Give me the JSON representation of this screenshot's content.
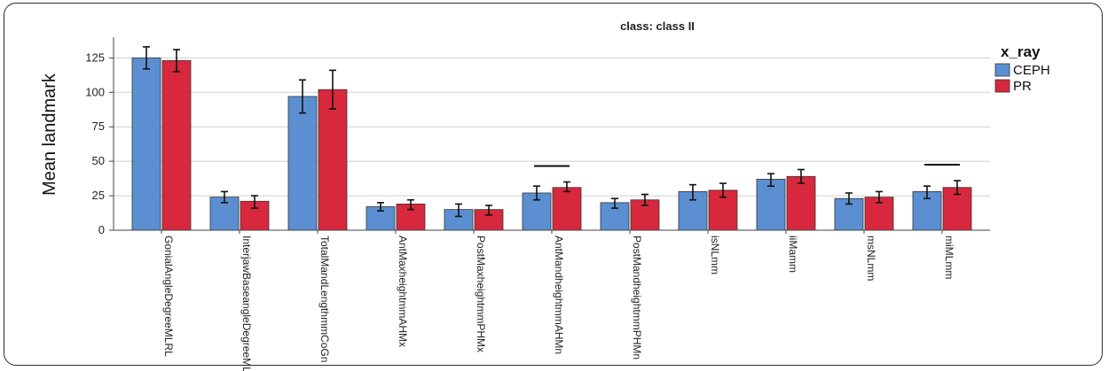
{
  "chart_data": {
    "type": "bar",
    "title": "class: class II",
    "ylabel": "Mean landmark",
    "xlabel": "",
    "ylim": [
      0,
      140
    ],
    "yticks": [
      0,
      25,
      50,
      75,
      100,
      125
    ],
    "grid": true,
    "legend": {
      "title": "x_ray",
      "position": "top-right"
    },
    "categories": [
      "GonialAngleDegreeMLRL",
      "InterjawBaseangleDegreeMLNL",
      "TotalMandLengthmmCoGn",
      "AntMaxheightmmAHMx",
      "PostMaxheightmmPHMx",
      "AntMandheightmmAHMn",
      "PostMandheightmmPHMn",
      "isNLmm",
      "iiMamm",
      "msNLmm",
      "miMLmm"
    ],
    "series": [
      {
        "name": "CEPH",
        "color": "#5b8fd1",
        "values": [
          125,
          24,
          97,
          17,
          15,
          27,
          20,
          28,
          37,
          23,
          28
        ],
        "error_low": [
          117,
          20,
          85,
          14,
          10,
          22,
          16,
          22,
          32,
          19,
          23
        ],
        "error_high": [
          133,
          28,
          109,
          20,
          19,
          32,
          23,
          33,
          41,
          27,
          32
        ]
      },
      {
        "name": "PR",
        "color": "#d8283d",
        "values": [
          123,
          21,
          102,
          19,
          15,
          31,
          22,
          29,
          39,
          24,
          31
        ],
        "error_low": [
          115,
          16,
          88,
          15,
          11,
          28,
          18,
          24,
          34,
          20,
          26
        ],
        "error_high": [
          131,
          25,
          116,
          22,
          18,
          35,
          26,
          34,
          44,
          28,
          36
        ]
      }
    ],
    "annotation_lines_over": [
      "AntMandheightmmAHMn",
      "miMLmm"
    ]
  }
}
